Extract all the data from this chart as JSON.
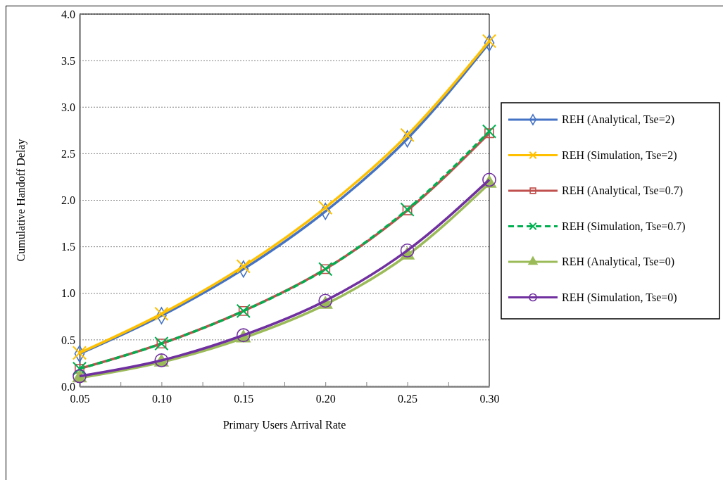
{
  "chart_data": {
    "type": "line",
    "xlabel": "Primary Users Arrival Rate",
    "ylabel": "Cumulative Handoff Delay",
    "x": [
      0.05,
      0.1,
      0.15,
      0.2,
      0.25,
      0.3
    ],
    "xlim": [
      0.05,
      0.3
    ],
    "xticks": [
      {
        "value": 0.05,
        "label": "0.05"
      },
      {
        "value": 0.075,
        "label": null
      },
      {
        "value": 0.1,
        "label": "0.10"
      },
      {
        "value": 0.125,
        "label": null
      },
      {
        "value": 0.15,
        "label": "0.15"
      },
      {
        "value": 0.175,
        "label": null
      },
      {
        "value": 0.2,
        "label": "0.20"
      },
      {
        "value": 0.225,
        "label": null
      },
      {
        "value": 0.25,
        "label": "0.25"
      },
      {
        "value": 0.275,
        "label": null
      },
      {
        "value": 0.3,
        "label": "0.30"
      }
    ],
    "ylim": [
      0,
      4
    ],
    "yticks": [
      {
        "value": 0,
        "label": "0.0"
      },
      {
        "value": 0.5,
        "label": "0.5"
      },
      {
        "value": 1,
        "label": "1.0"
      },
      {
        "value": 1.5,
        "label": "1.5"
      },
      {
        "value": 2,
        "label": "2.0"
      },
      {
        "value": 2.5,
        "label": "2.5"
      },
      {
        "value": 3,
        "label": "3.0"
      },
      {
        "value": 3.5,
        "label": "3.5"
      },
      {
        "value": 4,
        "label": "4.0"
      }
    ],
    "grid": "y",
    "legend": "right",
    "series": [
      {
        "name": "REH (Analytical, Tse=2)",
        "color": "#4472c4",
        "marker": "diamond",
        "line_style": "solid",
        "values": [
          0.35,
          0.76,
          1.26,
          1.88,
          2.66,
          3.69
        ]
      },
      {
        "name": "REH (Simulation, Tse=2)",
        "color": "#ffc000",
        "marker": "cross",
        "line_style": "solid",
        "values": [
          0.36,
          0.78,
          1.29,
          1.92,
          2.7,
          3.71
        ]
      },
      {
        "name": "REH (Analytical, Tse=0.7)",
        "color": "#c0504d",
        "marker": "square",
        "line_style": "solid",
        "values": [
          0.19,
          0.46,
          0.81,
          1.26,
          1.89,
          2.72
        ]
      },
      {
        "name": "REH (Simulation, Tse=0.7)",
        "color": "#00b050",
        "marker": "cross",
        "line_style": "dashed",
        "values": [
          0.19,
          0.46,
          0.81,
          1.26,
          1.9,
          2.74
        ]
      },
      {
        "name": "REH (Analytical, Tse=0)",
        "color": "#9bbb59",
        "marker": "triangle",
        "line_style": "solid",
        "values": [
          0.09,
          0.26,
          0.52,
          0.88,
          1.41,
          2.18
        ]
      },
      {
        "name": "REH (Simulation, Tse=0)",
        "color": "#7030a0",
        "marker": "circle",
        "line_style": "solid",
        "values": [
          0.11,
          0.28,
          0.55,
          0.92,
          1.46,
          2.22
        ]
      }
    ]
  }
}
